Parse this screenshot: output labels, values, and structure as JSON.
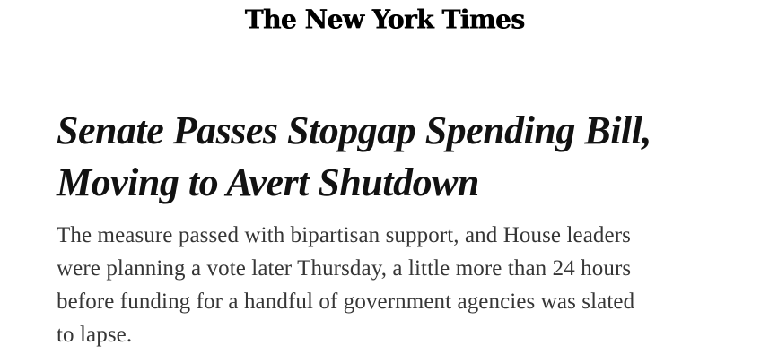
{
  "masthead": {
    "logo_text": "The New York Times"
  },
  "article": {
    "headline": {
      "full": "Senate Passes Stopgap Spending Bill, Moving to Avert Shutdown",
      "lines": [
        "Senate Passes Stopgap Spending Bill,",
        "Moving to Avert Shutdown"
      ]
    },
    "summary": {
      "full": "The measure passed with bipartisan support, and House leaders were planning a vote later Thursday, a little more than 24 hours before funding for a handful of government agencies was slated to lapse.",
      "lines": [
        "The measure passed with bipartisan support, and House leaders",
        "were planning a vote later Thursday, a little more than 24 hours",
        "before funding for a handful of government agencies was slated",
        "to lapse."
      ]
    }
  },
  "colors": {
    "background": "#ffffff",
    "divider": "#e2e2e2",
    "logo": "#000000",
    "headline_text": "#121212",
    "summary_text": "#363636"
  }
}
